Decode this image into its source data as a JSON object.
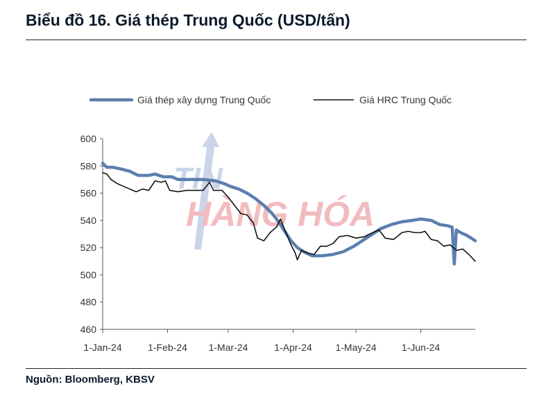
{
  "header": {
    "title": "Biểu đồ 16. Giá thép Trung Quốc (USD/tấn)"
  },
  "footer": {
    "source": "Nguồn: Bloomberg, KBSV"
  },
  "watermark": {
    "line1": "TIN",
    "line2": "HÀNG HÓA"
  },
  "colors": {
    "construction": "#5b7fae",
    "hrc": "#111111",
    "axis": "#555555",
    "watermark_red": "#e8868a",
    "watermark_blue": "#9fb3d8"
  },
  "chart_data": {
    "type": "line",
    "title": "",
    "xlabel": "",
    "ylabel": "",
    "ylim": [
      460,
      600
    ],
    "yticks": [
      460,
      480,
      500,
      520,
      540,
      560,
      580,
      600
    ],
    "x_axis": {
      "start": "2024-01-01",
      "end": "2024-06-27",
      "ticks": [
        "1-Jan-24",
        "1-Feb-24",
        "1-Mar-24",
        "1-Apr-24",
        "1-May-24",
        "1-Jun-24"
      ],
      "tick_dates": [
        "2024-01-01",
        "2024-02-01",
        "2024-03-01",
        "2024-04-01",
        "2024-05-01",
        "2024-06-01"
      ]
    },
    "legend_position": "top",
    "grid": false,
    "series": [
      {
        "name": "Giá thép xây dựng Trung Quốc",
        "points": [
          [
            "2024-01-01",
            582
          ],
          [
            "2024-01-03",
            579
          ],
          [
            "2024-01-06",
            579
          ],
          [
            "2024-01-09",
            578
          ],
          [
            "2024-01-14",
            576
          ],
          [
            "2024-01-18",
            573
          ],
          [
            "2024-01-23",
            573
          ],
          [
            "2024-01-26",
            574
          ],
          [
            "2024-01-30",
            572
          ],
          [
            "2024-02-03",
            572
          ],
          [
            "2024-02-06",
            570
          ],
          [
            "2024-02-12",
            570
          ],
          [
            "2024-02-18",
            570
          ],
          [
            "2024-02-24",
            569
          ],
          [
            "2024-02-28",
            567
          ],
          [
            "2024-03-02",
            565
          ],
          [
            "2024-03-06",
            563
          ],
          [
            "2024-03-10",
            560
          ],
          [
            "2024-03-14",
            556
          ],
          [
            "2024-03-18",
            551
          ],
          [
            "2024-03-22",
            545
          ],
          [
            "2024-03-25",
            539
          ],
          [
            "2024-03-28",
            532
          ],
          [
            "2024-03-31",
            525
          ],
          [
            "2024-04-03",
            520
          ],
          [
            "2024-04-06",
            517
          ],
          [
            "2024-04-10",
            514
          ],
          [
            "2024-04-15",
            514
          ],
          [
            "2024-04-20",
            515
          ],
          [
            "2024-04-25",
            517
          ],
          [
            "2024-04-30",
            521
          ],
          [
            "2024-05-05",
            526
          ],
          [
            "2024-05-09",
            530
          ],
          [
            "2024-05-13",
            534
          ],
          [
            "2024-05-18",
            537
          ],
          [
            "2024-05-23",
            539
          ],
          [
            "2024-05-28",
            540
          ],
          [
            "2024-06-01",
            541
          ],
          [
            "2024-06-06",
            540
          ],
          [
            "2024-06-10",
            537
          ],
          [
            "2024-06-14",
            536
          ],
          [
            "2024-06-16",
            535
          ],
          [
            "2024-06-17",
            508
          ],
          [
            "2024-06-18",
            533
          ],
          [
            "2024-06-20",
            531
          ],
          [
            "2024-06-23",
            529
          ],
          [
            "2024-06-25",
            527
          ],
          [
            "2024-06-27",
            525
          ]
        ]
      },
      {
        "name": "Giá HRC Trung Quốc",
        "points": [
          [
            "2024-01-01",
            575
          ],
          [
            "2024-01-03",
            574
          ],
          [
            "2024-01-05",
            570
          ],
          [
            "2024-01-08",
            567
          ],
          [
            "2024-01-11",
            565
          ],
          [
            "2024-01-14",
            563
          ],
          [
            "2024-01-17",
            561
          ],
          [
            "2024-01-20",
            563
          ],
          [
            "2024-01-23",
            562
          ],
          [
            "2024-01-26",
            569
          ],
          [
            "2024-01-29",
            568
          ],
          [
            "2024-01-31",
            569
          ],
          [
            "2024-02-02",
            562
          ],
          [
            "2024-02-06",
            561
          ],
          [
            "2024-02-10",
            562
          ],
          [
            "2024-02-14",
            562
          ],
          [
            "2024-02-18",
            562
          ],
          [
            "2024-02-21",
            568
          ],
          [
            "2024-02-23",
            562
          ],
          [
            "2024-02-27",
            562
          ],
          [
            "2024-03-01",
            557
          ],
          [
            "2024-03-04",
            551
          ],
          [
            "2024-03-07",
            545
          ],
          [
            "2024-03-10",
            544
          ],
          [
            "2024-03-13",
            538
          ],
          [
            "2024-03-15",
            527
          ],
          [
            "2024-03-18",
            525
          ],
          [
            "2024-03-21",
            531
          ],
          [
            "2024-03-24",
            535
          ],
          [
            "2024-03-26",
            541
          ],
          [
            "2024-03-28",
            533
          ],
          [
            "2024-03-31",
            522
          ],
          [
            "2024-04-02",
            516
          ],
          [
            "2024-04-03",
            511
          ],
          [
            "2024-04-05",
            518
          ],
          [
            "2024-04-08",
            516
          ],
          [
            "2024-04-11",
            515
          ],
          [
            "2024-04-14",
            521
          ],
          [
            "2024-04-17",
            521
          ],
          [
            "2024-04-20",
            523
          ],
          [
            "2024-04-23",
            528
          ],
          [
            "2024-04-27",
            529
          ],
          [
            "2024-05-01",
            527
          ],
          [
            "2024-05-05",
            528
          ],
          [
            "2024-05-09",
            531
          ],
          [
            "2024-05-12",
            533
          ],
          [
            "2024-05-15",
            527
          ],
          [
            "2024-05-19",
            526
          ],
          [
            "2024-05-23",
            531
          ],
          [
            "2024-05-26",
            532
          ],
          [
            "2024-05-29",
            531
          ],
          [
            "2024-06-01",
            531
          ],
          [
            "2024-06-03",
            532
          ],
          [
            "2024-06-06",
            526
          ],
          [
            "2024-06-09",
            525
          ],
          [
            "2024-06-12",
            521
          ],
          [
            "2024-06-15",
            522
          ],
          [
            "2024-06-18",
            518
          ],
          [
            "2024-06-21",
            519
          ],
          [
            "2024-06-24",
            515
          ],
          [
            "2024-06-27",
            510
          ]
        ]
      }
    ]
  }
}
